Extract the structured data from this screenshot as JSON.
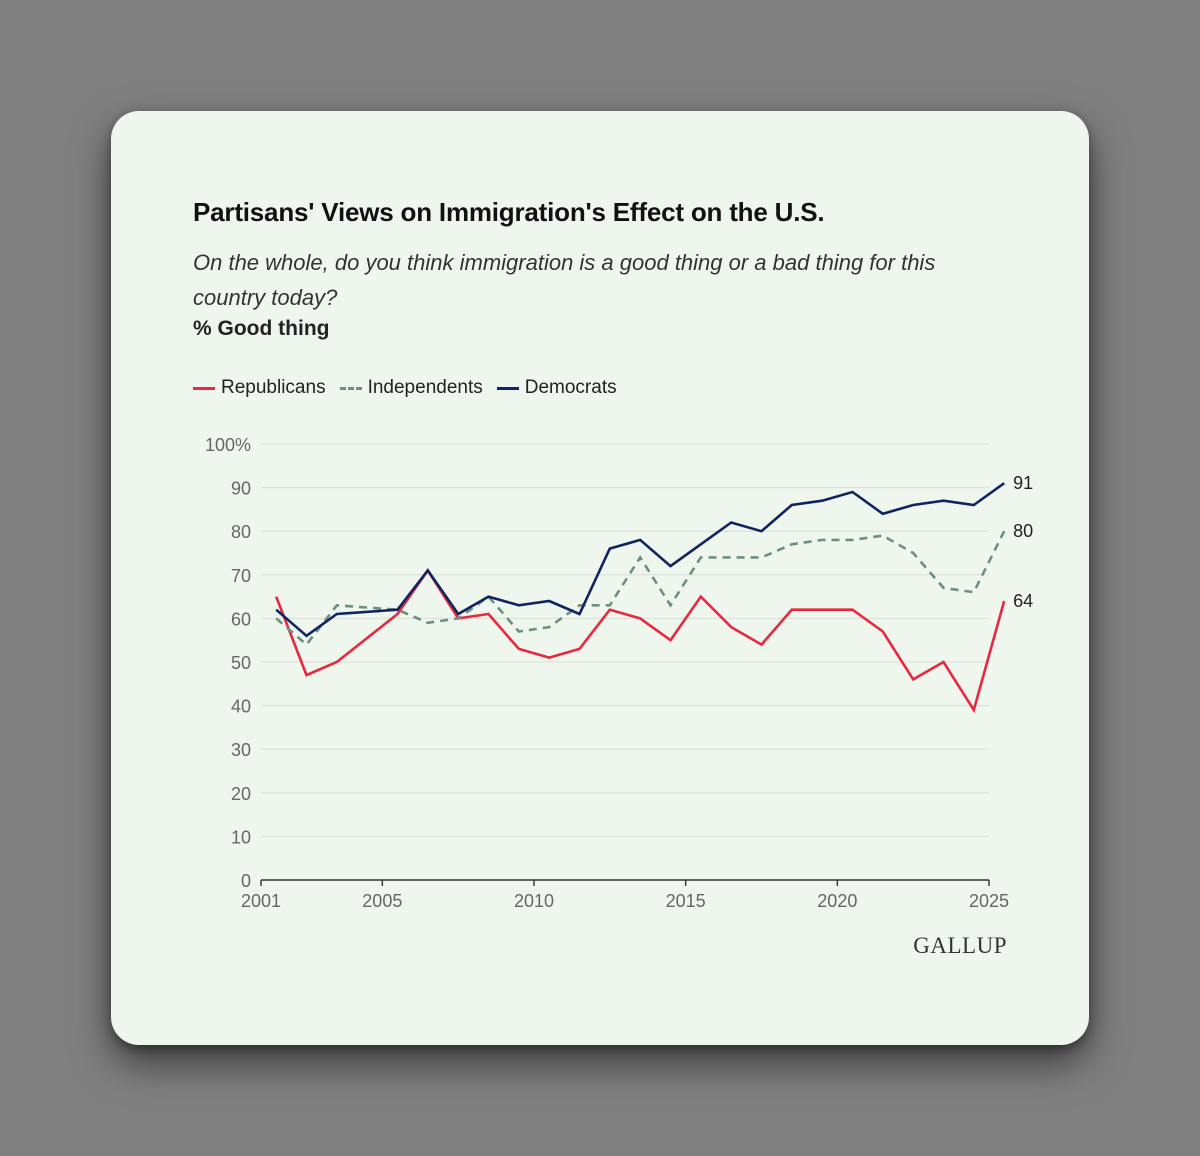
{
  "brand": "GALLUP",
  "chart_data": {
    "type": "line",
    "title": "Partisans' Views on Immigration's Effect on the U.S.",
    "subtitle": "On the whole, do you think immigration is a good thing or a bad thing for this country today?",
    "measure": "% Good thing",
    "ylim": [
      0,
      100
    ],
    "xlim": [
      2001,
      2025
    ],
    "y_ticks": [
      0,
      10,
      20,
      30,
      40,
      50,
      60,
      70,
      80,
      90,
      100
    ],
    "y_tick_labels": [
      "0",
      "10",
      "20",
      "30",
      "40",
      "50",
      "60",
      "70",
      "80",
      "90",
      "100%"
    ],
    "x_ticks": [
      2001,
      2005,
      2010,
      2015,
      2020,
      2025
    ],
    "x_tick_labels": [
      "2001",
      "2005",
      "2010",
      "2015",
      "2020",
      "2025"
    ],
    "grid": true,
    "legend_position": "top-left",
    "x": [
      2001.5,
      2002.5,
      2003.5,
      2005.5,
      2006.5,
      2007.5,
      2008.5,
      2009.5,
      2010.5,
      2011.5,
      2012.5,
      2013.5,
      2014.5,
      2015.5,
      2016.5,
      2017.5,
      2018.5,
      2019.5,
      2020.5,
      2021.5,
      2022.5,
      2023.5,
      2024.5,
      2025.5
    ],
    "series": [
      {
        "name": "Republicans",
        "color": "#e8283f",
        "style": "solid",
        "end_label": "64",
        "values": [
          65,
          47,
          50,
          61,
          71,
          60,
          61,
          53,
          51,
          53,
          62,
          60,
          55,
          65,
          58,
          54,
          62,
          62,
          62,
          57,
          46,
          50,
          39,
          64
        ]
      },
      {
        "name": "Independents",
        "color": "#6e8f80",
        "style": "dashed",
        "end_label": "80",
        "values": [
          60,
          54,
          63,
          62,
          59,
          60,
          65,
          57,
          58,
          63,
          63,
          74,
          63,
          74,
          74,
          74,
          77,
          78,
          78,
          79,
          75,
          67,
          66,
          80
        ]
      },
      {
        "name": "Democrats",
        "color": "#0f2460",
        "style": "solid",
        "end_label": "91",
        "values": [
          62,
          56,
          61,
          62,
          71,
          61,
          65,
          63,
          64,
          61,
          76,
          78,
          72,
          77,
          82,
          80,
          86,
          87,
          89,
          84,
          86,
          87,
          86,
          91
        ]
      }
    ]
  }
}
